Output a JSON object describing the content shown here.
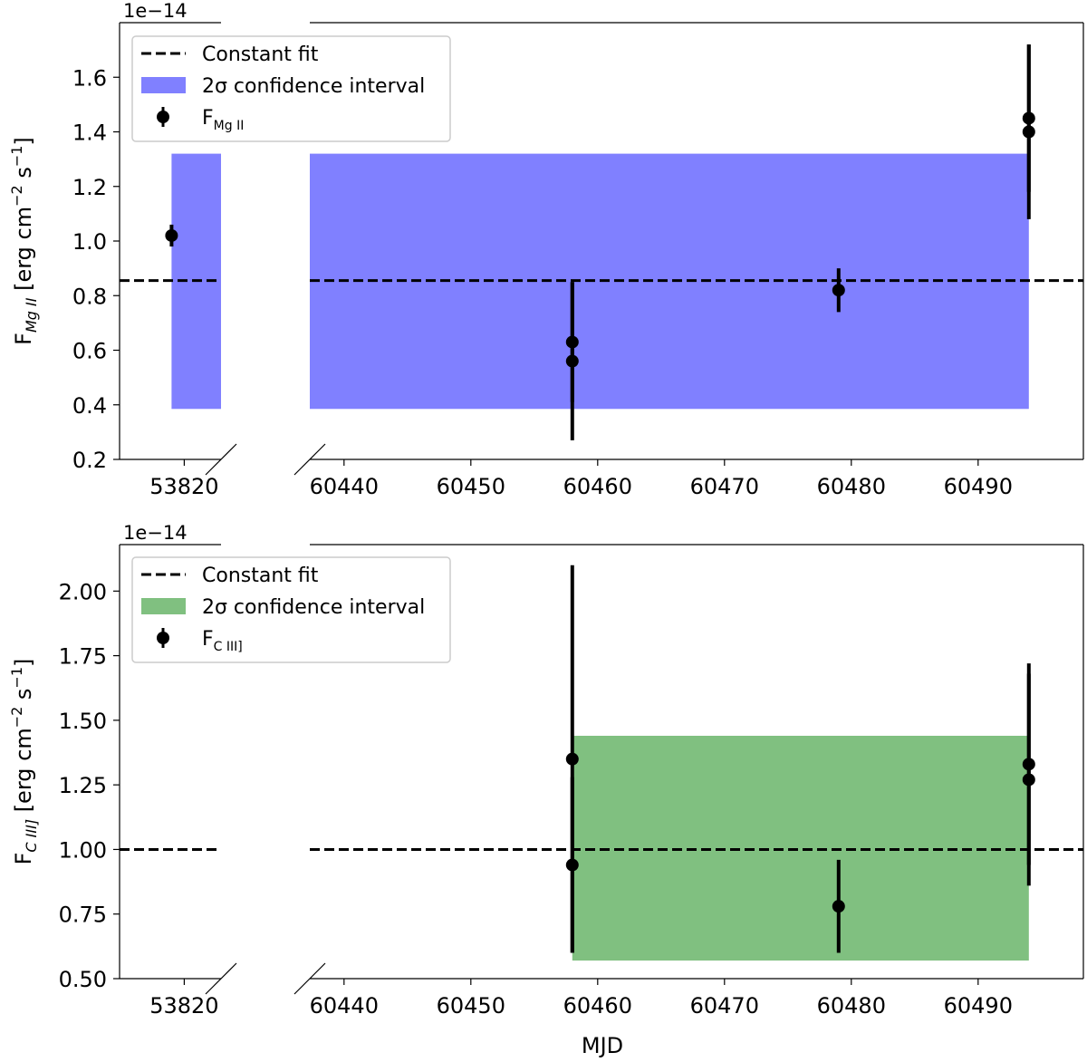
{
  "chart_data": [
    {
      "type": "scatter",
      "offset_text": "1e−14",
      "ylabel": {
        "main": "F",
        "sub": "Mg II",
        "unit": " [erg cm",
        "exp1": "−2",
        "mid": " s",
        "exp2": "−1",
        "end": "]"
      },
      "xlabel": "",
      "ylim": [
        0.2,
        1.8
      ],
      "yticks": [
        0.2,
        0.4,
        0.6,
        0.8,
        1.0,
        1.2,
        1.4,
        1.6
      ],
      "ytick_labels": [
        "0.2",
        "0.4",
        "0.6",
        "0.8",
        "1.0",
        "1.2",
        "1.4",
        "1.6"
      ],
      "broken_x_axis": [
        {
          "xlim": [
            53814.9,
            53822.9
          ],
          "xticks": [
            53820
          ],
          "xtick_labels": [
            "53820"
          ]
        },
        {
          "xlim": [
            60437.3,
            60498.3
          ],
          "xticks": [
            60440,
            60450,
            60460,
            60470,
            60480,
            60490
          ],
          "xtick_labels": [
            "60440",
            "60450",
            "60460",
            "60470",
            "60480",
            "60490"
          ]
        }
      ],
      "constant_fit": 0.855,
      "confidence_band": {
        "low": 0.385,
        "high": 1.32,
        "segments": [
          [
            53819,
            53823
          ],
          [
            60437,
            60494
          ]
        ],
        "color": "#8080ff"
      },
      "points": [
        {
          "x": 53819,
          "y": 1.02,
          "err": 0.04
        },
        {
          "x": 60458,
          "y": 0.63,
          "err": 0.22
        },
        {
          "x": 60458,
          "y": 0.56,
          "err": 0.29
        },
        {
          "x": 60479,
          "y": 0.82,
          "err": 0.08
        },
        {
          "x": 60494,
          "y": 1.45,
          "err": 0.27
        },
        {
          "x": 60494,
          "y": 1.4,
          "err": 0.32
        }
      ],
      "legend": {
        "placement": "upper-left",
        "items": [
          {
            "kind": "dashed-line",
            "label": "Constant fit"
          },
          {
            "kind": "patch",
            "label": "2σ confidence interval"
          },
          {
            "kind": "errorbar",
            "label": "F",
            "sub": "Mg II"
          }
        ]
      }
    },
    {
      "type": "scatter",
      "offset_text": "1e−14",
      "ylabel": {
        "main": "F",
        "sub": "C III]",
        "unit": " [erg cm",
        "exp1": "−2",
        "mid": " s",
        "exp2": "−1",
        "end": "]"
      },
      "xlabel": "MJD",
      "ylim": [
        0.5,
        2.18
      ],
      "yticks": [
        0.5,
        0.75,
        1.0,
        1.25,
        1.5,
        1.75,
        2.0
      ],
      "ytick_labels": [
        "0.50",
        "0.75",
        "1.00",
        "1.25",
        "1.50",
        "1.75",
        "2.00"
      ],
      "broken_x_axis": [
        {
          "xlim": [
            53814.9,
            53822.9
          ],
          "xticks": [
            53820
          ],
          "xtick_labels": [
            "53820"
          ]
        },
        {
          "xlim": [
            60437.3,
            60498.3
          ],
          "xticks": [
            60440,
            60450,
            60460,
            60470,
            60480,
            60490
          ],
          "xtick_labels": [
            "60440",
            "60450",
            "60460",
            "60470",
            "60480",
            "60490"
          ]
        }
      ],
      "constant_fit": 1.0,
      "confidence_band": {
        "low": 0.57,
        "high": 1.44,
        "segments": [
          [
            60458,
            60494
          ]
        ],
        "color": "#80c080"
      },
      "points": [
        {
          "x": 60458,
          "y": 1.35,
          "err": 0.75
        },
        {
          "x": 60458,
          "y": 0.94,
          "err": 0.34
        },
        {
          "x": 60479,
          "y": 0.78,
          "err": 0.18
        },
        {
          "x": 60494,
          "y": 1.33,
          "err": 0.39
        },
        {
          "x": 60494,
          "y": 1.27,
          "err": 0.41
        }
      ],
      "legend": {
        "placement": "upper-left",
        "items": [
          {
            "kind": "dashed-line",
            "label": "Constant fit"
          },
          {
            "kind": "patch",
            "label": "2σ confidence interval"
          },
          {
            "kind": "errorbar",
            "label": "F",
            "sub": "C III]"
          }
        ]
      }
    }
  ]
}
